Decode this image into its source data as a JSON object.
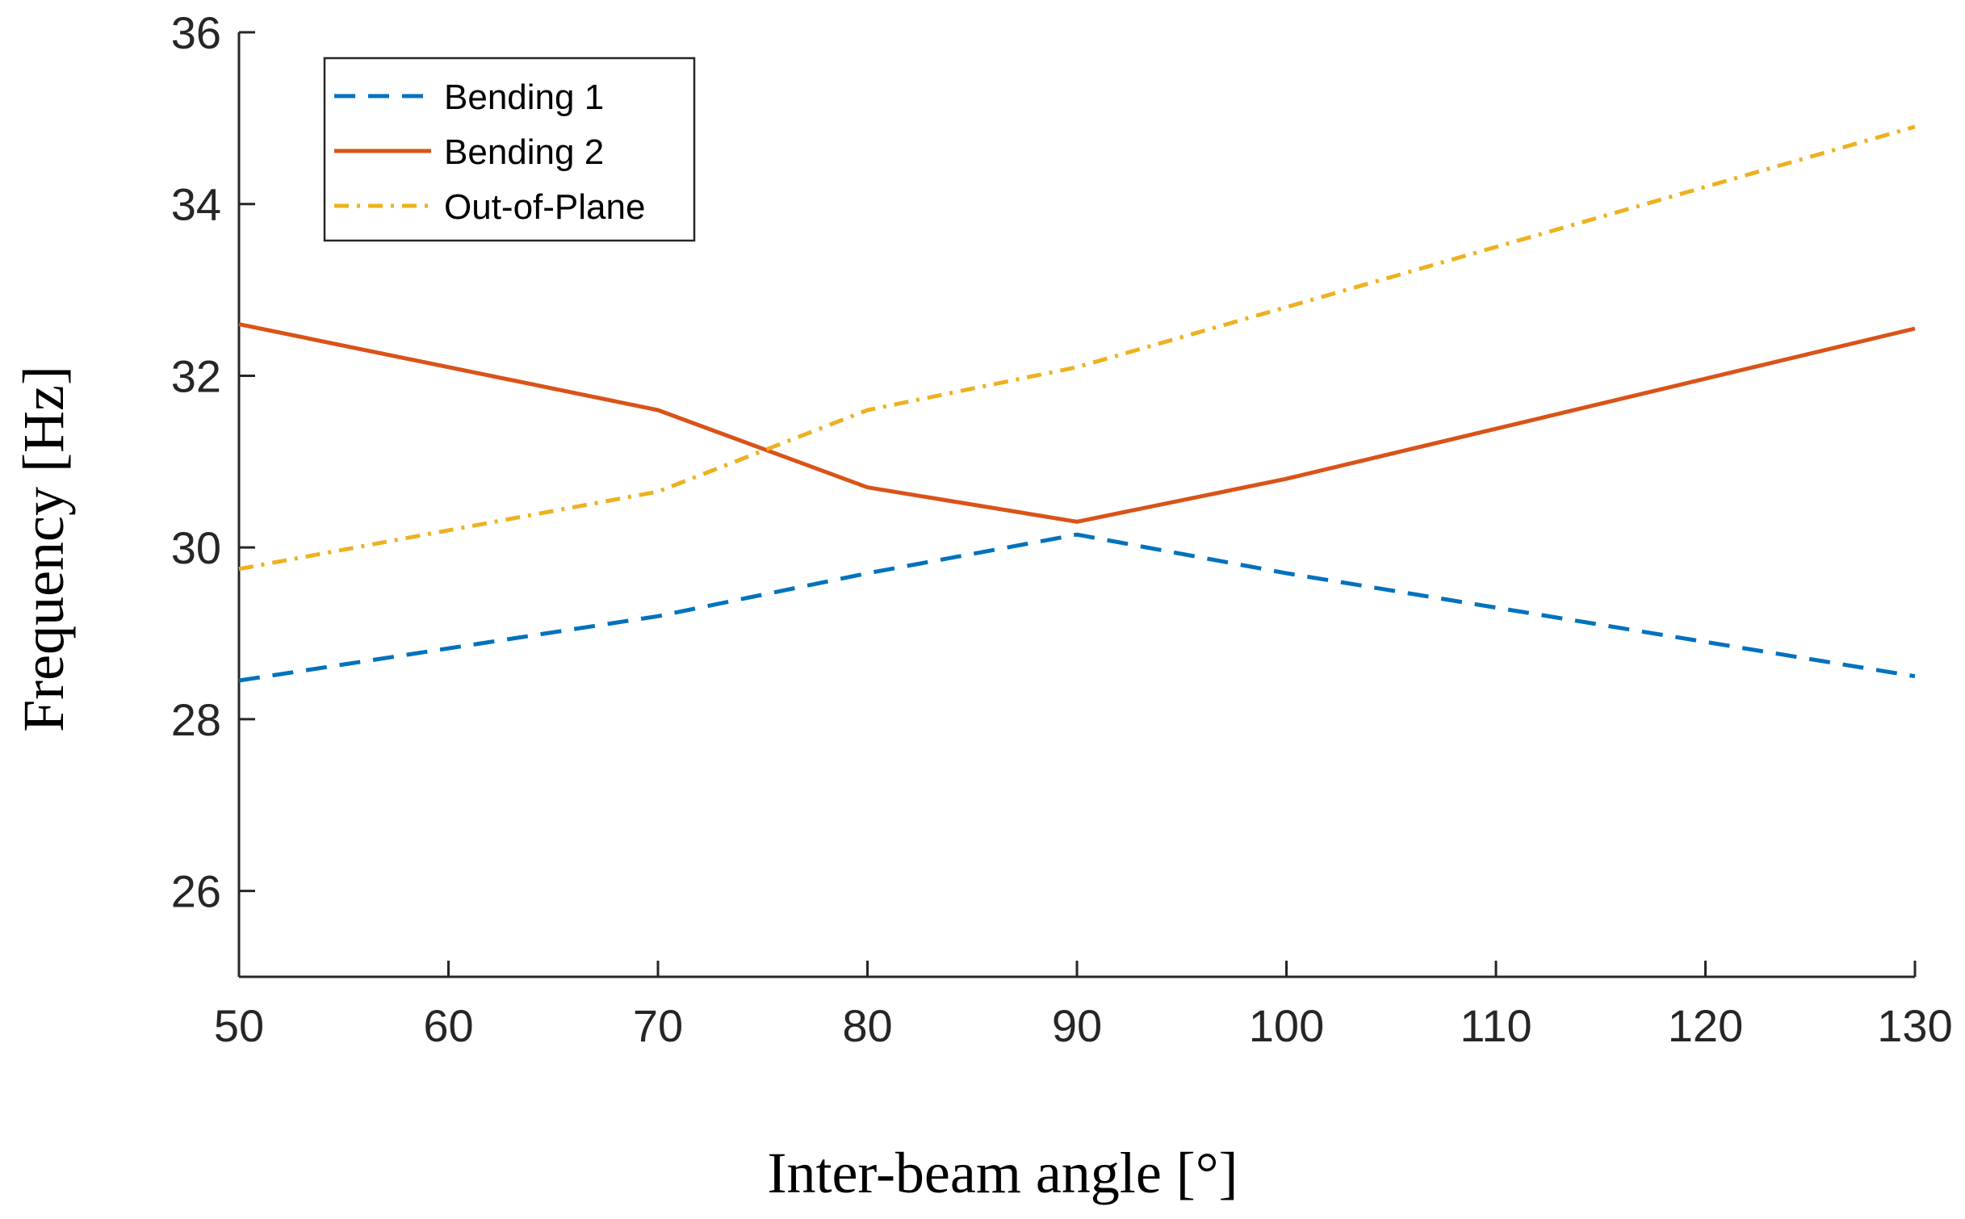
{
  "chart_data": {
    "type": "line",
    "title": "",
    "xlabel": "Inter-beam angle [°]",
    "ylabel": "Frequency [Hz]",
    "xlim": [
      50,
      130
    ],
    "ylim": [
      25,
      36
    ],
    "xticks": [
      50,
      60,
      70,
      80,
      90,
      100,
      110,
      120,
      130
    ],
    "yticks": [
      26,
      28,
      30,
      32,
      34,
      36
    ],
    "grid": false,
    "legend_position": "top-left",
    "x": [
      50,
      70,
      80,
      90,
      100,
      130
    ],
    "series": [
      {
        "name": "Bending 1",
        "style": "dashed",
        "color": "#0072BD",
        "values": [
          28.45,
          29.2,
          29.7,
          30.15,
          29.7,
          28.5
        ]
      },
      {
        "name": "Bending 2",
        "style": "solid",
        "color": "#D95319",
        "values": [
          32.6,
          31.6,
          30.7,
          30.3,
          30.8,
          32.55
        ]
      },
      {
        "name": "Out-of-Plane",
        "style": "dashdot",
        "color": "#EDB120",
        "values": [
          29.75,
          30.65,
          31.6,
          32.1,
          32.8,
          34.9
        ]
      }
    ]
  }
}
